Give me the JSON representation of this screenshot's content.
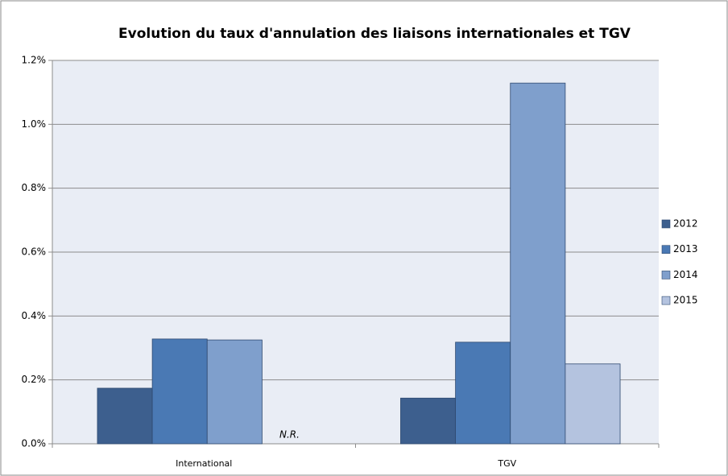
{
  "chart_data": {
    "type": "bar",
    "title": "Evolution du taux d'annulation des liaisons internationales et TGV",
    "categories": [
      "International",
      "TGV"
    ],
    "series": [
      {
        "name": "2012",
        "color": "#3d5f8e",
        "values": [
          0.174,
          0.143
        ]
      },
      {
        "name": "2013",
        "color": "#4a79b4",
        "values": [
          0.328,
          0.318
        ]
      },
      {
        "name": "2014",
        "color": "#7f9fcc",
        "values": [
          0.325,
          1.129
        ]
      },
      {
        "name": "2015",
        "color": "#b4c3df",
        "values": [
          null,
          0.25
        ]
      }
    ],
    "annotations": [
      "N.R."
    ],
    "ylim": [
      0,
      1.2
    ],
    "yticks": [
      {
        "value": 0,
        "label": "0.0%"
      },
      {
        "value": 0.2,
        "label": "0.2%"
      },
      {
        "value": 0.4,
        "label": "0.4%"
      },
      {
        "value": 0.6,
        "label": "0.6%"
      },
      {
        "value": 0.8,
        "label": "0.8%"
      },
      {
        "value": 1.0,
        "label": "1.0%"
      },
      {
        "value": 1.2,
        "label": "1.2%"
      }
    ],
    "grid": true,
    "legend": "right"
  }
}
